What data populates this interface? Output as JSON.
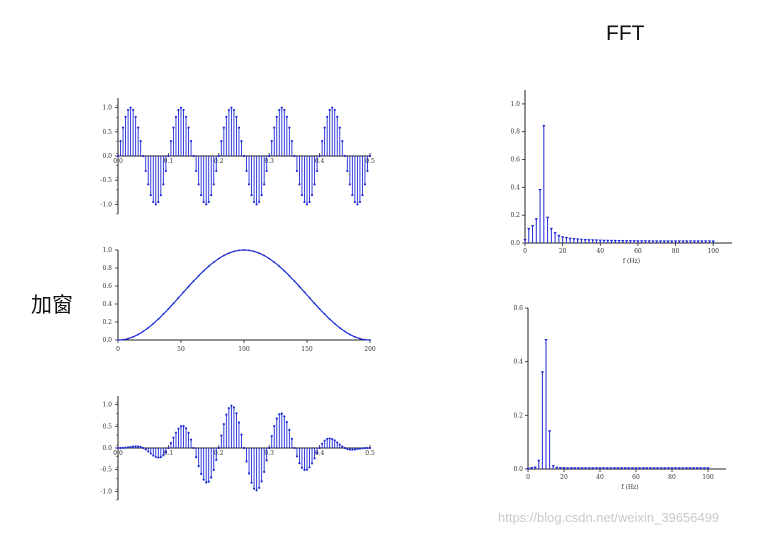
{
  "labels": {
    "fft_title": "FFT",
    "window_label": "加窗",
    "watermark": "https://blog.csdn.net/weixin_39656499"
  },
  "colors": {
    "stem": "#1f2bd6",
    "axis": "#222222",
    "text": "#111111",
    "watermark": "#c9c9c9"
  },
  "chart_data": [
    {
      "name": "signal",
      "type": "stem",
      "xlim": [
        0,
        0.5
      ],
      "ylim": [
        -1.2,
        1.2
      ],
      "xticks": [
        "0.0",
        "0.1",
        "0.2",
        "0.3",
        "0.4",
        "0.5"
      ],
      "yticks": [
        "1.0",
        "0.5",
        "0.0",
        "-0.5",
        "-1.0"
      ],
      "sample_interval": 0.005,
      "frequency_hz": 10,
      "amplitude": 1.0
    },
    {
      "name": "window",
      "type": "line",
      "xlim": [
        0,
        200
      ],
      "ylim": [
        0,
        1.0
      ],
      "xticks": [
        "0",
        "50",
        "100",
        "150",
        "200"
      ],
      "yticks": [
        "1.0",
        "0.8",
        "0.6",
        "0.4",
        "0.2",
        "0.0"
      ],
      "shape": "hanning",
      "peak_x": 100,
      "peak_y": 1.0
    },
    {
      "name": "windowed-signal",
      "type": "stem",
      "xlim": [
        0,
        0.5
      ],
      "ylim": [
        -1.2,
        1.2
      ],
      "xticks": [
        "0.0",
        "0.1",
        "0.2",
        "0.3",
        "0.4",
        "0.5"
      ],
      "yticks": [
        "1.0",
        "0.5",
        "0.0",
        "-0.5",
        "-1.0"
      ],
      "sample_interval": 0.005,
      "frequency_hz": 10,
      "envelope": "hanning"
    },
    {
      "name": "fft",
      "type": "stem",
      "xlabel": "f (Hz)",
      "xlim": [
        0,
        110
      ],
      "ylim": [
        0,
        1.1
      ],
      "xticks": [
        "0",
        "20",
        "40",
        "60",
        "80",
        "100"
      ],
      "yticks": [
        "1.0",
        "0.8",
        "0.6",
        "0.4",
        "0.2",
        "0.0"
      ],
      "x": [
        0,
        2,
        4,
        6,
        8,
        10,
        12,
        14,
        16,
        18,
        20,
        22,
        24,
        26,
        28,
        30,
        32,
        34,
        36,
        38,
        40,
        42,
        44,
        46,
        48,
        50,
        52,
        54,
        56,
        58,
        60,
        62,
        64,
        66,
        68,
        70,
        72,
        74,
        76,
        78,
        80,
        82,
        84,
        86,
        88,
        90,
        92,
        94,
        96,
        98,
        100
      ],
      "y": [
        0.02,
        0.1,
        0.12,
        0.17,
        0.38,
        0.84,
        0.18,
        0.1,
        0.07,
        0.05,
        0.04,
        0.035,
        0.03,
        0.027,
        0.025,
        0.022,
        0.02,
        0.019,
        0.018,
        0.017,
        0.016,
        0.015,
        0.015,
        0.014,
        0.014,
        0.013,
        0.013,
        0.012,
        0.012,
        0.012,
        0.011,
        0.011,
        0.011,
        0.011,
        0.01,
        0.01,
        0.01,
        0.01,
        0.01,
        0.01,
        0.01,
        0.01,
        0.01,
        0.01,
        0.01,
        0.01,
        0.01,
        0.01,
        0.01,
        0.01,
        0.01
      ]
    },
    {
      "name": "windowed-fft",
      "type": "stem",
      "xlabel": "f (Hz)",
      "xlim": [
        0,
        110
      ],
      "ylim": [
        0,
        0.6
      ],
      "xticks": [
        "0",
        "20",
        "40",
        "60",
        "80",
        "100"
      ],
      "yticks": [
        "0.6",
        "0.4",
        "0.2",
        "0.0"
      ],
      "x": [
        0,
        2,
        4,
        6,
        8,
        10,
        12,
        14,
        16,
        18,
        20,
        22,
        24,
        26,
        28,
        30,
        32,
        34,
        36,
        38,
        40,
        42,
        44,
        46,
        48,
        50,
        52,
        54,
        56,
        58,
        60,
        62,
        64,
        66,
        68,
        70,
        72,
        74,
        76,
        78,
        80,
        82,
        84,
        86,
        88,
        90,
        92,
        94,
        96,
        98,
        100
      ],
      "y": [
        0.0,
        0.003,
        0.005,
        0.03,
        0.36,
        0.48,
        0.14,
        0.01,
        0.004,
        0.003,
        0.003,
        0.002,
        0.002,
        0.002,
        0.002,
        0.002,
        0.002,
        0.002,
        0.002,
        0.002,
        0.002,
        0.002,
        0.002,
        0.002,
        0.002,
        0.002,
        0.002,
        0.002,
        0.002,
        0.002,
        0.002,
        0.002,
        0.002,
        0.002,
        0.002,
        0.002,
        0.002,
        0.002,
        0.002,
        0.002,
        0.002,
        0.002,
        0.002,
        0.002,
        0.002,
        0.002,
        0.002,
        0.002,
        0.002,
        0.002,
        0.002
      ]
    }
  ]
}
